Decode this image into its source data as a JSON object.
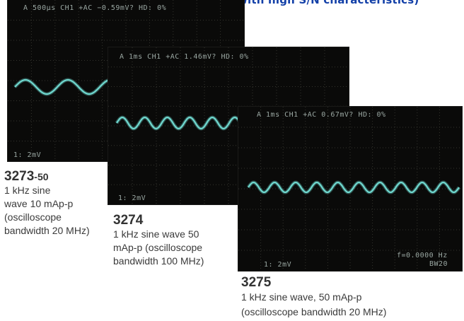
{
  "page": {
    "header": "(When measuring very low current with high S/N characteristics)"
  },
  "colors": {
    "trace": "#6fd8cf",
    "screen_bg": "#0a0a09",
    "grid": "#34342e",
    "header": "#1340a8"
  },
  "scopes": [
    {
      "id": "3273-50",
      "readout": "A  500μs CH1 +AC   −0.59mV?    HD:  0%",
      "scale": "1:   2mV",
      "trace_cycles": 3,
      "trace_amplitude": 0.35
    },
    {
      "id": "3274",
      "readout": "A    1ms CH1 +AC    1.46mV?     HD:  0%",
      "scale": "1:   2mV",
      "trace_cycles": 10,
      "trace_amplitude": 0.35
    },
    {
      "id": "3275",
      "readout": "A    1ms CH1 +AC    0.67mV?    HD:  0%",
      "scale": "1:   2mV",
      "freq": "f=0.0000 Hz",
      "bw": "BW20",
      "trace_cycles": 10,
      "trace_amplitude": 0.35
    }
  ],
  "captions": [
    {
      "model": "3273",
      "suffix": "-50",
      "lines": [
        "1 kHz sine",
        "wave 10 mAp-p",
        "(oscilloscope",
        "bandwidth 20 MHz)"
      ]
    },
    {
      "model": "3274",
      "lines": [
        "1 kHz sine wave 50",
        "mAp-p (oscilloscope",
        "bandwidth 100 MHz)"
      ]
    },
    {
      "model": "3275",
      "lines": [
        "1 kHz sine wave, 50 mAp-p",
        "(oscilloscope bandwidth 20 MHz)"
      ]
    }
  ]
}
